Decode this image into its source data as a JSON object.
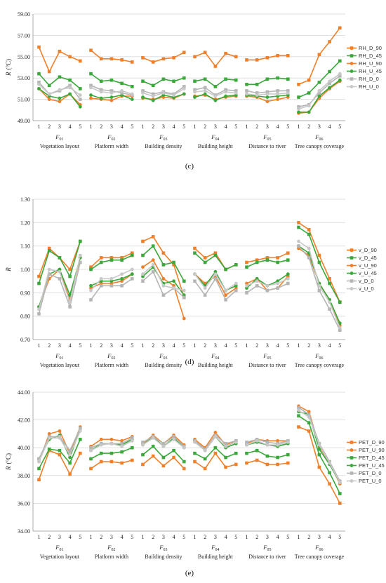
{
  "chart_data": [
    {
      "type": "line",
      "panel_label": "(c)",
      "ylabel_symbol": "R",
      "ylabel_unit": "(°C)",
      "ylim": [
        49.0,
        59.0
      ],
      "yticks": [
        "49.00",
        "51.00",
        "53.00",
        "55.00",
        "57.00",
        "59.00"
      ],
      "yticks_values": [
        49,
        51,
        53,
        55,
        57,
        59
      ],
      "x_ticks": [
        "1",
        "2",
        "3",
        "4",
        "5"
      ],
      "groups": [
        {
          "symbol": "F",
          "sub": "01",
          "name": "Vegetation layout"
        },
        {
          "symbol": "F",
          "sub": "02",
          "name": "Platform width"
        },
        {
          "symbol": "F",
          "sub": "03",
          "name": "Building density"
        },
        {
          "symbol": "F",
          "sub": "04",
          "name": "Building height"
        },
        {
          "symbol": "F",
          "sub": "05",
          "name": "Distance to river"
        },
        {
          "symbol": "F",
          "sub": "06",
          "name": "Tree canopy coverage"
        }
      ],
      "series": [
        {
          "name": "RH_D_90",
          "color": "#f07f2a",
          "marker": "square",
          "values": [
            [
              55.9,
              53.6,
              55.5,
              55.0,
              54.6
            ],
            [
              55.6,
              54.8,
              54.8,
              54.7,
              54.5
            ],
            [
              54.9,
              54.5,
              54.8,
              54.9,
              55.4
            ],
            [
              55.0,
              55.4,
              54.1,
              55.3,
              55.0
            ],
            [
              54.7,
              54.7,
              54.9,
              55.1,
              55.1
            ],
            [
              52.4,
              52.8,
              55.2,
              56.4,
              57.7
            ]
          ]
        },
        {
          "name": "RH_D_45",
          "color": "#3aa83a",
          "marker": "square",
          "values": [
            [
              53.4,
              52.3,
              53.1,
              52.8,
              52.0
            ],
            [
              53.4,
              52.7,
              52.8,
              52.5,
              52.2
            ],
            [
              52.7,
              52.3,
              52.9,
              52.7,
              53.0
            ],
            [
              52.7,
              52.9,
              52.2,
              52.9,
              52.8
            ],
            [
              52.4,
              52.4,
              52.9,
              53.0,
              52.9
            ],
            [
              51.2,
              51.6,
              52.6,
              53.6,
              54.6
            ]
          ]
        },
        {
          "name": "RH_U_90",
          "color": "#f07f2a",
          "marker": "circle",
          "values": [
            [
              52.0,
              51.0,
              50.8,
              51.5,
              50.5
            ],
            [
              51.1,
              51.0,
              50.9,
              51.3,
              51.3
            ],
            [
              51.1,
              51.0,
              51.2,
              51.1,
              51.5
            ],
            [
              51.3,
              51.4,
              51.0,
              51.2,
              51.3
            ],
            [
              51.3,
              51.2,
              50.8,
              51.0,
              51.2
            ],
            [
              49.7,
              49.8,
              51.1,
              52.0,
              52.7
            ]
          ]
        },
        {
          "name": "RH_U_45",
          "color": "#3aa83a",
          "marker": "circle",
          "values": [
            [
              52.0,
              51.3,
              51.1,
              51.5,
              50.3
            ],
            [
              51.4,
              51.1,
              51.2,
              51.4,
              51.0
            ],
            [
              51.2,
              50.9,
              51.4,
              51.2,
              51.5
            ],
            [
              51.2,
              51.5,
              50.9,
              51.3,
              51.4
            ],
            [
              51.4,
              51.3,
              51.2,
              51.3,
              51.4
            ],
            [
              49.8,
              49.8,
              51.3,
              52.1,
              52.8
            ]
          ]
        },
        {
          "name": "RH_D_0",
          "color": "#b5b5b5",
          "marker": "square",
          "values": [
            [
              52.6,
              51.5,
              51.8,
              52.3,
              51.0
            ],
            [
              52.3,
              51.9,
              51.8,
              51.6,
              51.4
            ],
            [
              51.8,
              51.5,
              51.7,
              51.5,
              52.2
            ],
            [
              51.9,
              52.1,
              51.4,
              51.9,
              51.8
            ],
            [
              51.8,
              51.6,
              51.7,
              51.8,
              51.8
            ],
            [
              50.3,
              50.5,
              51.6,
              52.5,
              53.2
            ]
          ]
        },
        {
          "name": "RH_U_0",
          "color": "#c8c8c8",
          "marker": "circle",
          "values": [
            [
              52.4,
              51.5,
              51.9,
              52.1,
              51.4
            ],
            [
              52.1,
              51.7,
              51.6,
              51.8,
              51.5
            ],
            [
              51.6,
              51.3,
              51.6,
              51.4,
              52.0
            ],
            [
              51.7,
              51.8,
              51.3,
              51.7,
              51.6
            ],
            [
              51.5,
              51.4,
              51.5,
              51.5,
              51.6
            ],
            [
              50.1,
              50.4,
              51.8,
              52.7,
              53.4
            ]
          ]
        }
      ]
    },
    {
      "type": "line",
      "panel_label": "(d)",
      "ylabel_symbol": "R",
      "ylabel_unit": "",
      "ylim": [
        0.7,
        1.3
      ],
      "yticks": [
        "0.70",
        "0.80",
        "0.90",
        "1.00",
        "1.10",
        "1.20",
        "1.30"
      ],
      "yticks_values": [
        0.7,
        0.8,
        0.9,
        1.0,
        1.1,
        1.2,
        1.3
      ],
      "x_ticks": [
        "1",
        "2",
        "3",
        "4",
        "5"
      ],
      "groups": [
        {
          "symbol": "F",
          "sub": "01",
          "name": "Vegetation layout"
        },
        {
          "symbol": "F",
          "sub": "02",
          "name": "Platform width"
        },
        {
          "symbol": "F",
          "sub": "03",
          "name": "Building density"
        },
        {
          "symbol": "F",
          "sub": "04",
          "name": "Building height"
        },
        {
          "symbol": "F",
          "sub": "05",
          "name": "Distance to river"
        },
        {
          "symbol": "F",
          "sub": "06",
          "name": "Tree canopy coverage"
        }
      ],
      "series": [
        {
          "name": "v_D_90",
          "color": "#f07f2a",
          "marker": "square",
          "values": [
            [
              0.97,
              1.09,
              1.05,
              1.0,
              1.12
            ],
            [
              1.01,
              1.05,
              1.05,
              1.05,
              1.07
            ],
            [
              1.12,
              1.14,
              1.07,
              1.02,
              0.88
            ],
            [
              1.09,
              1.05,
              1.07,
              1.0,
              1.02
            ],
            [
              1.03,
              1.04,
              1.05,
              1.05,
              1.07
            ],
            [
              1.2,
              1.17,
              1.06,
              0.96,
              0.86
            ]
          ]
        },
        {
          "name": "v_D_45",
          "color": "#3aa83a",
          "marker": "square",
          "values": [
            [
              0.94,
              1.08,
              1.05,
              0.97,
              1.12
            ],
            [
              1.0,
              1.03,
              1.04,
              1.04,
              1.06
            ],
            [
              1.06,
              1.1,
              1.02,
              1.03,
              0.95
            ],
            [
              1.07,
              1.03,
              1.06,
              1.0,
              1.02
            ],
            [
              1.01,
              1.03,
              1.04,
              1.03,
              1.04
            ],
            [
              1.18,
              1.15,
              1.03,
              0.94,
              0.86
            ]
          ]
        },
        {
          "name": "v_U_90",
          "color": "#f07f2a",
          "marker": "circle",
          "values": [
            [
              0.84,
              0.96,
              1.0,
              0.87,
              1.05
            ],
            [
              0.92,
              0.94,
              0.94,
              0.95,
              0.98
            ],
            [
              1.01,
              1.04,
              0.96,
              0.93,
              0.79
            ],
            [
              0.98,
              0.94,
              0.97,
              0.89,
              0.92
            ],
            [
              0.94,
              0.96,
              0.91,
              0.92,
              0.97
            ],
            [
              1.09,
              1.06,
              0.94,
              0.87,
              0.76
            ]
          ]
        },
        {
          "name": "v_U_45",
          "color": "#3aa83a",
          "marker": "circle",
          "values": [
            [
              0.84,
              0.98,
              1.0,
              0.89,
              1.05
            ],
            [
              0.93,
              0.95,
              0.95,
              0.96,
              0.98
            ],
            [
              0.97,
              1.01,
              0.94,
              0.95,
              0.89
            ],
            [
              0.98,
              0.93,
              0.99,
              0.91,
              0.93
            ],
            [
              0.92,
              0.96,
              0.93,
              0.95,
              0.98
            ],
            [
              1.1,
              1.07,
              0.94,
              0.87,
              0.77
            ]
          ]
        },
        {
          "name": "v_D_0",
          "color": "#b5b5b5",
          "marker": "square",
          "values": [
            [
              0.81,
              0.98,
              0.96,
              0.84,
              1.03
            ],
            [
              0.87,
              0.93,
              0.93,
              0.93,
              0.96
            ],
            [
              0.95,
              0.99,
              0.89,
              0.92,
              0.88
            ],
            [
              0.95,
              0.89,
              0.96,
              0.87,
              0.91
            ],
            [
              0.9,
              0.93,
              0.91,
              0.92,
              0.94
            ],
            [
              1.1,
              1.05,
              0.91,
              0.83,
              0.74
            ]
          ]
        },
        {
          "name": "v_U_0",
          "color": "#c8c8c8",
          "marker": "circle",
          "values": [
            [
              0.83,
              1.0,
              0.99,
              0.86,
              1.06
            ],
            [
              0.91,
              0.96,
              0.96,
              0.98,
              1.0
            ],
            [
              0.98,
              1.02,
              0.93,
              0.92,
              0.91
            ],
            [
              0.98,
              0.92,
              0.98,
              0.91,
              0.94
            ],
            [
              0.93,
              0.95,
              0.93,
              0.94,
              0.96
            ],
            [
              1.12,
              1.09,
              0.93,
              0.86,
              0.75
            ]
          ]
        }
      ]
    },
    {
      "type": "line",
      "panel_label": "(e)",
      "ylabel_symbol": "R",
      "ylabel_unit": "(°C)",
      "ylim": [
        34.0,
        44.0
      ],
      "yticks": [
        "34.00",
        "36.00",
        "38.00",
        "40.00",
        "42.00",
        "44.00"
      ],
      "yticks_values": [
        34,
        36,
        38,
        40,
        42,
        44
      ],
      "x_ticks": [
        "1",
        "2",
        "3",
        "4",
        "5"
      ],
      "groups": [
        {
          "symbol": "F",
          "sub": "01",
          "name": "Vegetation layout"
        },
        {
          "symbol": "F",
          "sub": "02",
          "name": "Platform width"
        },
        {
          "symbol": "F",
          "sub": "03",
          "name": "Building density"
        },
        {
          "symbol": "F",
          "sub": "04",
          "name": "Building height"
        },
        {
          "symbol": "F",
          "sub": "05",
          "name": "Distance to river"
        },
        {
          "symbol": "F",
          "sub": "06",
          "name": "Tree canopy coverage"
        }
      ],
      "series": [
        {
          "name": "PET_D_90",
          "color": "#f07f2a",
          "marker": "square",
          "values": [
            [
              37.7,
              39.8,
              39.5,
              38.1,
              39.6
            ],
            [
              38.5,
              39.0,
              39.0,
              38.9,
              39.1
            ],
            [
              38.8,
              39.4,
              38.7,
              39.3,
              38.5
            ],
            [
              39.0,
              38.5,
              39.6,
              38.6,
              38.8
            ],
            [
              38.9,
              39.1,
              38.8,
              38.8,
              38.9
            ],
            [
              41.5,
              41.2,
              38.6,
              37.4,
              36.0
            ]
          ]
        },
        {
          "name": "PET_U_90",
          "color": "#f07f2a",
          "marker": "circle",
          "values": [
            [
              39.0,
              41.0,
              41.2,
              39.6,
              41.5
            ],
            [
              40.1,
              40.6,
              40.6,
              40.5,
              40.8
            ],
            [
              40.3,
              40.9,
              40.3,
              40.9,
              40.2
            ],
            [
              40.6,
              40.0,
              41.1,
              40.2,
              40.5
            ],
            [
              40.3,
              40.6,
              40.5,
              40.5,
              40.5
            ],
            [
              43.0,
              42.6,
              40.1,
              38.9,
              37.4
            ]
          ]
        },
        {
          "name": "PET_D_45",
          "color": "#3aa83a",
          "marker": "square",
          "values": [
            [
              38.5,
              39.9,
              39.8,
              38.9,
              40.6
            ],
            [
              39.2,
              39.6,
              39.6,
              39.7,
              40.0
            ],
            [
              39.5,
              40.1,
              39.3,
              39.8,
              39.0
            ],
            [
              39.6,
              39.2,
              40.0,
              39.3,
              39.6
            ],
            [
              39.6,
              39.8,
              39.4,
              39.3,
              39.5
            ],
            [
              42.3,
              41.8,
              39.5,
              38.2,
              36.7
            ]
          ]
        },
        {
          "name": "PET_U_45",
          "color": "#3aa83a",
          "marker": "circle",
          "values": [
            [
              39.2,
              40.6,
              40.9,
              39.3,
              41.4
            ],
            [
              39.8,
              40.3,
              40.3,
              40.2,
              40.6
            ],
            [
              40.2,
              40.8,
              40.1,
              40.7,
              40.0
            ],
            [
              40.5,
              39.8,
              40.8,
              40.0,
              40.3
            ],
            [
              40.2,
              40.4,
              40.2,
              40.1,
              40.3
            ],
            [
              42.6,
              42.4,
              39.9,
              38.8,
              37.5
            ]
          ]
        },
        {
          "name": "PET_D_0",
          "color": "#b5b5b5",
          "marker": "square",
          "values": [
            [
              39.2,
              40.8,
              40.8,
              39.8,
              41.4
            ],
            [
              40.0,
              40.3,
              40.3,
              40.3,
              40.7
            ],
            [
              40.4,
              40.8,
              40.3,
              40.8,
              40.1
            ],
            [
              40.5,
              39.9,
              40.9,
              40.3,
              40.5
            ],
            [
              40.4,
              40.6,
              40.4,
              40.3,
              40.5
            ],
            [
              42.9,
              42.4,
              40.3,
              39.0,
              37.6
            ]
          ]
        },
        {
          "name": "PET_U_0",
          "color": "#c8c8c8",
          "marker": "circle",
          "values": [
            [
              39.0,
              40.7,
              40.7,
              39.5,
              41.2
            ],
            [
              39.8,
              40.2,
              40.3,
              40.1,
              40.5
            ],
            [
              40.2,
              40.7,
              40.1,
              40.6,
              40.0
            ],
            [
              40.4,
              39.8,
              40.8,
              40.1,
              40.4
            ],
            [
              40.2,
              40.5,
              40.2,
              40.2,
              40.4
            ],
            [
              42.7,
              42.2,
              40.2,
              38.9,
              37.5
            ]
          ]
        }
      ]
    }
  ]
}
